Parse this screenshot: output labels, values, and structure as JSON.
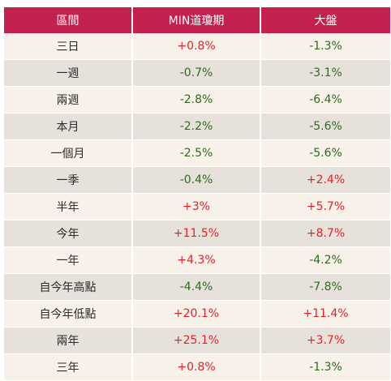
{
  "table": {
    "headers": [
      "區間",
      "MIN道瓊期",
      "大盤"
    ],
    "rows": [
      {
        "period": "三日",
        "min": "+0.8%",
        "market": "-1.3%"
      },
      {
        "period": "一週",
        "min": "-0.7%",
        "market": "-3.1%"
      },
      {
        "period": "兩週",
        "min": "-2.8%",
        "market": "-6.4%"
      },
      {
        "period": "本月",
        "min": "-2.2%",
        "market": "-5.6%"
      },
      {
        "period": "一個月",
        "min": "-2.5%",
        "market": "-5.6%"
      },
      {
        "period": "一季",
        "min": "-0.4%",
        "market": "+2.4%"
      },
      {
        "period": "半年",
        "min": "+3%",
        "market": "+5.7%"
      },
      {
        "period": "今年",
        "min": "+11.5%",
        "market": "+8.7%"
      },
      {
        "period": "一年",
        "min": "+4.3%",
        "market": "-4.2%"
      },
      {
        "period": "自今年高點",
        "min": "-4.4%",
        "market": "-7.8%"
      },
      {
        "period": "自今年低點",
        "min": "+20.1%",
        "market": "+11.4%"
      },
      {
        "period": "兩年",
        "min": "+25.1%",
        "market": "+3.7%"
      },
      {
        "period": "三年",
        "min": "+0.8%",
        "market": "-1.3%"
      }
    ]
  },
  "colors": {
    "header_bg": "#c3224e",
    "positive": "#e2232a",
    "negative": "#2e6b1f",
    "row_light": "#f7f1ea",
    "row_dark": "#e6e1db"
  }
}
